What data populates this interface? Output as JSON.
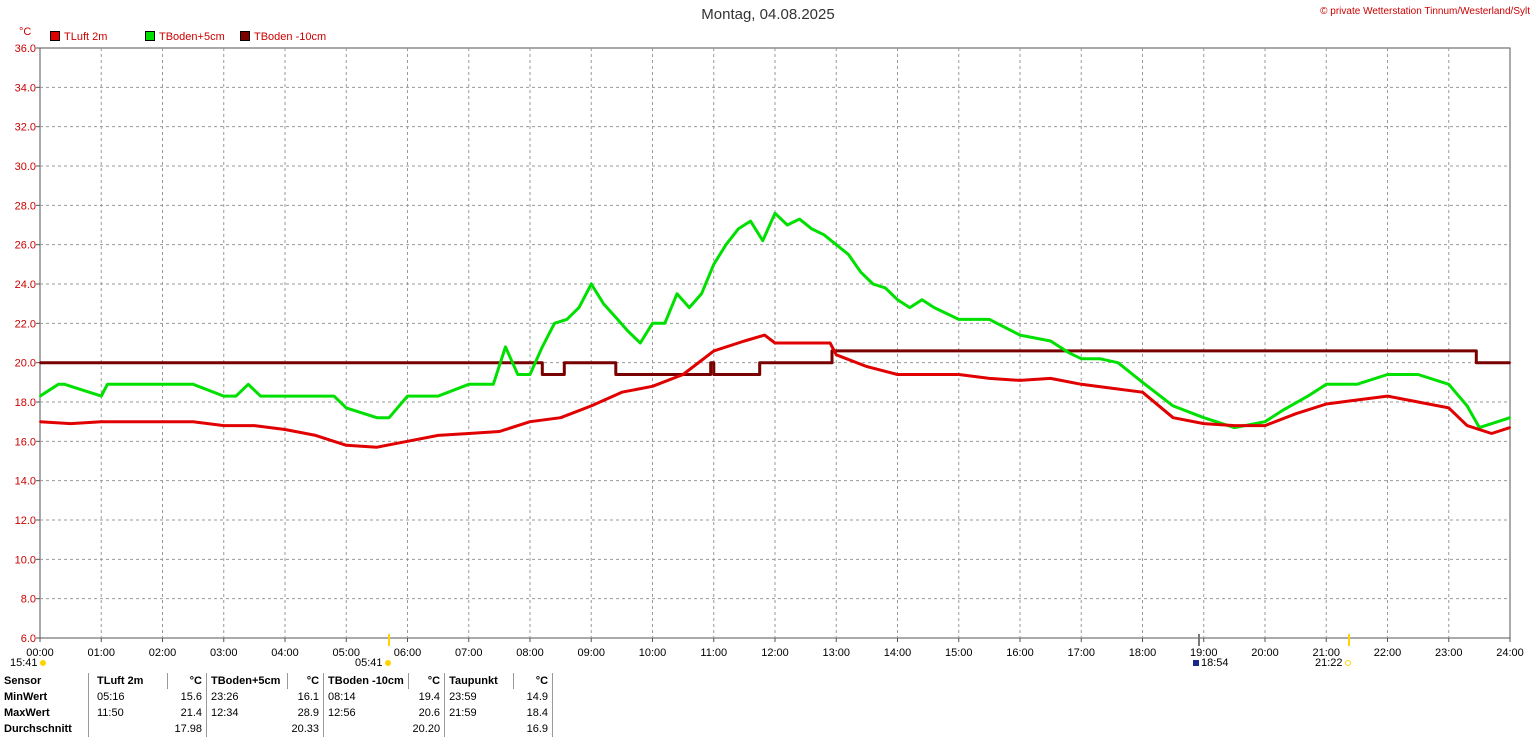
{
  "header": {
    "title": "Montag, 04.08.2025",
    "copyright": "© private Wetterstation Tinnum/Westerland/Sylt",
    "unit": "°C"
  },
  "markers": {
    "left_start": "15:41",
    "sunrise": "05:41",
    "sunset": "18:54",
    "moon": "21:22"
  },
  "chart_data": {
    "type": "line",
    "xlabel": "",
    "ylabel": "°C",
    "xlim": [
      0,
      24
    ],
    "ylim": [
      6,
      36
    ],
    "grid": true,
    "legend_position": "top-left",
    "x_ticks": [
      "00:00",
      "01:00",
      "02:00",
      "03:00",
      "04:00",
      "05:00",
      "06:00",
      "07:00",
      "08:00",
      "09:00",
      "10:00",
      "11:00",
      "12:00",
      "13:00",
      "14:00",
      "15:00",
      "16:00",
      "17:00",
      "18:00",
      "19:00",
      "20:00",
      "21:00",
      "22:00",
      "23:00",
      "24:00"
    ],
    "y_ticks": [
      "6.0",
      "8.0",
      "10.0",
      "12.0",
      "14.0",
      "16.0",
      "18.0",
      "20.0",
      "22.0",
      "24.0",
      "26.0",
      "28.0",
      "30.0",
      "32.0",
      "34.0",
      "36.0"
    ],
    "series": [
      {
        "name": "TLuft 2m",
        "color": "#e00000",
        "x": [
          0,
          0.5,
          1,
          1.5,
          2,
          2.5,
          3,
          3.5,
          4,
          4.5,
          5,
          5.5,
          6,
          6.5,
          7,
          7.5,
          8,
          8.5,
          9,
          9.5,
          10,
          10.5,
          11,
          11.5,
          11.83,
          12,
          12.3,
          12.6,
          12.9,
          13,
          13.5,
          14,
          14.5,
          15,
          15.5,
          16,
          16.5,
          17,
          17.5,
          18,
          18.5,
          19,
          19.5,
          20,
          20.5,
          21,
          21.5,
          22,
          22.5,
          23,
          23.3,
          23.7,
          24
        ],
        "y": [
          17.0,
          16.9,
          17.0,
          17.0,
          17.0,
          17.0,
          16.8,
          16.8,
          16.6,
          16.3,
          15.8,
          15.7,
          16.0,
          16.3,
          16.4,
          16.5,
          17.0,
          17.2,
          17.8,
          18.5,
          18.8,
          19.4,
          20.6,
          21.1,
          21.4,
          21.0,
          21.0,
          21.0,
          21.0,
          20.4,
          19.8,
          19.4,
          19.4,
          19.4,
          19.2,
          19.1,
          19.2,
          18.9,
          18.7,
          18.5,
          17.2,
          16.9,
          16.8,
          16.8,
          17.4,
          17.9,
          18.1,
          18.3,
          18.0,
          17.7,
          16.8,
          16.4,
          16.7
        ]
      },
      {
        "name": "TBoden+5cm",
        "color": "#00e000",
        "x": [
          0,
          0.3,
          0.4,
          1,
          1.1,
          1.2,
          2,
          2.5,
          3,
          3.2,
          3.4,
          3.6,
          4,
          4.2,
          4.5,
          4.8,
          5,
          5.5,
          5.7,
          6,
          6.5,
          7,
          7.4,
          7.6,
          7.8,
          8,
          8.2,
          8.4,
          8.6,
          8.8,
          9,
          9.2,
          9.4,
          9.6,
          9.8,
          10,
          10.2,
          10.4,
          10.6,
          10.8,
          11,
          11.2,
          11.4,
          11.6,
          11.8,
          12,
          12.2,
          12.4,
          12.6,
          12.8,
          13,
          13.2,
          13.4,
          13.6,
          13.8,
          14,
          14.2,
          14.4,
          14.6,
          15,
          15.5,
          16,
          16.5,
          16.8,
          17,
          17.3,
          17.6,
          18,
          18.5,
          19,
          19.5,
          20,
          20.3,
          20.7,
          21,
          21.5,
          22,
          22.5,
          23,
          23.3,
          23.5,
          24
        ],
        "y": [
          18.3,
          18.9,
          18.9,
          18.3,
          18.9,
          18.9,
          18.9,
          18.9,
          18.3,
          18.3,
          18.9,
          18.3,
          18.3,
          18.3,
          18.3,
          18.3,
          17.7,
          17.2,
          17.2,
          18.3,
          18.3,
          18.9,
          18.9,
          20.8,
          19.4,
          19.4,
          20.8,
          22.0,
          22.2,
          22.8,
          24.0,
          23.0,
          22.3,
          21.6,
          21.0,
          22.0,
          22.0,
          23.5,
          22.8,
          23.5,
          25.0,
          26.0,
          26.8,
          27.2,
          26.2,
          27.6,
          27.0,
          27.3,
          26.8,
          26.5,
          26.0,
          25.5,
          24.6,
          24.0,
          23.8,
          23.2,
          22.8,
          23.2,
          22.8,
          22.2,
          22.2,
          21.4,
          21.1,
          20.5,
          20.2,
          20.2,
          20.0,
          19.0,
          17.8,
          17.2,
          16.7,
          17.0,
          17.6,
          18.3,
          18.9,
          18.9,
          19.4,
          19.4,
          18.9,
          17.8,
          16.7,
          17.2
        ]
      },
      {
        "name": "TBoden -10cm",
        "color": "#7a0000",
        "x": [
          0,
          8.2,
          8.2,
          8.56,
          8.56,
          9.4,
          9.4,
          10.95,
          10.95,
          11.0,
          11.0,
          11.75,
          11.75,
          12.93,
          12.93,
          23.45,
          23.45,
          24
        ],
        "y": [
          20.0,
          20.0,
          19.4,
          19.4,
          20.0,
          20.0,
          19.4,
          19.4,
          20.0,
          20.0,
          19.4,
          19.4,
          20.0,
          20.0,
          20.6,
          20.6,
          20.0,
          20.0
        ]
      }
    ]
  },
  "stats": {
    "headers": [
      "Sensor",
      "TLuft 2m",
      "°C",
      "TBoden+5cm",
      "°C",
      "TBoden -10cm",
      "°C",
      "Taupunkt",
      "°C"
    ],
    "rows": [
      {
        "label": "MinWert",
        "t1": "05:16",
        "v1": "15.6",
        "t2": "23:26",
        "v2": "16.1",
        "t3": "08:14",
        "v3": "19.4",
        "t4": "23:59",
        "v4": "14.9"
      },
      {
        "label": "MaxWert",
        "t1": "11:50",
        "v1": "21.4",
        "t2": "12:34",
        "v2": "28.9",
        "t3": "12:56",
        "v3": "20.6",
        "t4": "21:59",
        "v4": "18.4"
      },
      {
        "label": "Durchschnitt",
        "t1": "",
        "v1": "17.98",
        "t2": "",
        "v2": "20.33",
        "t3": "",
        "v3": "20.20",
        "t4": "",
        "v4": "16.9"
      }
    ]
  }
}
